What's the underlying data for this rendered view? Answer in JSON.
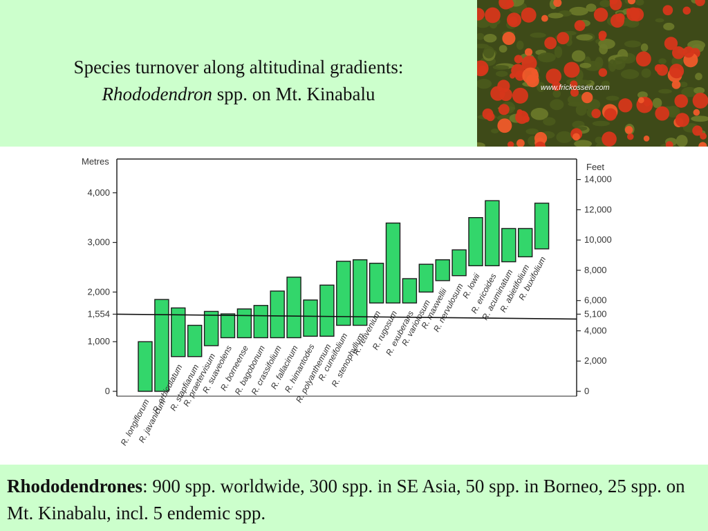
{
  "slide": {
    "title_line1": "Species turnover along altitudinal gradients:",
    "title_genus": "Rhododendron",
    "title_rest": " spp. on Mt. Kinabalu",
    "photo_credit": "www.frickossen.com",
    "caption_bold": "Rhododendrones",
    "caption_text": ": 900 spp. worldwide, 300 spp. in SE Asia, 50 spp. in Borneo, 25 spp. on Mt. Kinabalu, incl. 5 endemic spp."
  },
  "colors": {
    "background": "#ccffcc",
    "bar_fill": "#33d66b",
    "bar_stroke": "#1b1b1b",
    "photo_flowers": "#d6361a",
    "photo_leaves": "#4a5a1c"
  },
  "chart_data": {
    "type": "bar",
    "subtype": "floating-range",
    "left_axis_label": "Metres",
    "right_axis_label": "Feet",
    "left_ticks": [
      "0",
      "1,000",
      "1,554",
      "2,000",
      "3,000",
      "4,000"
    ],
    "left_tick_values": [
      0,
      1000,
      1554,
      2000,
      3000,
      4000
    ],
    "right_ticks": [
      "0",
      "2,000",
      "4,000",
      "5,100",
      "6,000",
      "8,000",
      "10,000",
      "12,000",
      "14,000"
    ],
    "right_tick_values": [
      0,
      2000,
      4000,
      5100,
      6000,
      8000,
      10000,
      12000,
      14000
    ],
    "ylim_m": [
      0,
      4600
    ],
    "reference_line_m": 1554,
    "categories": [
      "R. longiflorum",
      "R. javanicum",
      "R. orbiculatum",
      "R. stapfianum",
      "R. praetervisum",
      "R. suaveolens",
      "R. borneense",
      "R. bagobonum",
      "R. crassifolium",
      "R. fallacinum",
      "R. himantodes",
      "R. polyanthemum",
      "R. cuneifolium",
      "R. stenophyllum",
      "R. retivenium",
      "R. rugosum",
      "R. exuberans",
      "R. variolosum",
      "R. maxwellii",
      "R. nervulosum",
      "R. lowii",
      "R. ericoides",
      "R. acuminatum",
      "R. abietifolium",
      "R. buxifolium"
    ],
    "low_m": [
      0,
      0,
      700,
      700,
      920,
      1080,
      1080,
      1080,
      1080,
      1080,
      1110,
      1110,
      1330,
      1330,
      1780,
      1780,
      1780,
      2000,
      2230,
      2330,
      2530,
      2530,
      2610,
      2710,
      2870
    ],
    "high_m": [
      1000,
      1850,
      1680,
      1330,
      1610,
      1560,
      1660,
      1730,
      2020,
      2300,
      1840,
      2140,
      2620,
      2650,
      2580,
      3390,
      2270,
      2560,
      2650,
      2850,
      3500,
      3840,
      3280,
      3280,
      3790
    ]
  }
}
